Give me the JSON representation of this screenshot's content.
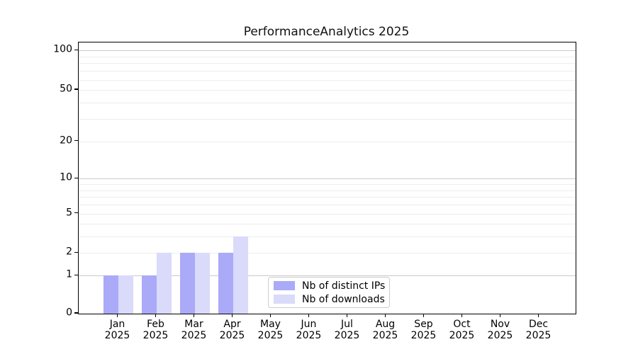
{
  "title": "PerformanceAnalytics 2025",
  "legend": {
    "items": [
      {
        "label": "Nb of distinct IPs",
        "color": "#aaaaf8"
      },
      {
        "label": "Nb of downloads",
        "color": "#dadafa"
      }
    ]
  },
  "chart_data": {
    "type": "bar",
    "title": "PerformanceAnalytics 2025",
    "categories": [
      "Jan",
      "Feb",
      "Mar",
      "Apr",
      "May",
      "Jun",
      "Jul",
      "Aug",
      "Sep",
      "Oct",
      "Nov",
      "Dec"
    ],
    "x_tick_year": "2025",
    "series": [
      {
        "name": "Nb of distinct IPs",
        "color": "#aaaaf8",
        "values": [
          1,
          1,
          2,
          2,
          0,
          0,
          0,
          0,
          0,
          0,
          0,
          0
        ]
      },
      {
        "name": "Nb of downloads",
        "color": "#dadafa",
        "values": [
          1,
          2,
          2,
          3,
          0,
          0,
          0,
          0,
          0,
          0,
          0,
          0
        ]
      }
    ],
    "xlabel": "",
    "ylabel": "",
    "yscale": "log1p",
    "ylim": [
      0,
      115
    ],
    "y_major_ticks": [
      0,
      1,
      2,
      5,
      10,
      20,
      50,
      100
    ],
    "y_minor_gridlines": [
      3,
      4,
      6,
      7,
      8,
      9,
      30,
      40,
      60,
      70,
      80,
      90
    ],
    "y_emphasized_gridlines": [
      1,
      10,
      100
    ],
    "grid": true,
    "legend_position": "lower center"
  },
  "colors": {
    "grid_minor": "#ededed",
    "grid_major": "#c9c9c9",
    "spine": "#000000",
    "background": "#ffffff",
    "legend_border": "#cccccc"
  }
}
